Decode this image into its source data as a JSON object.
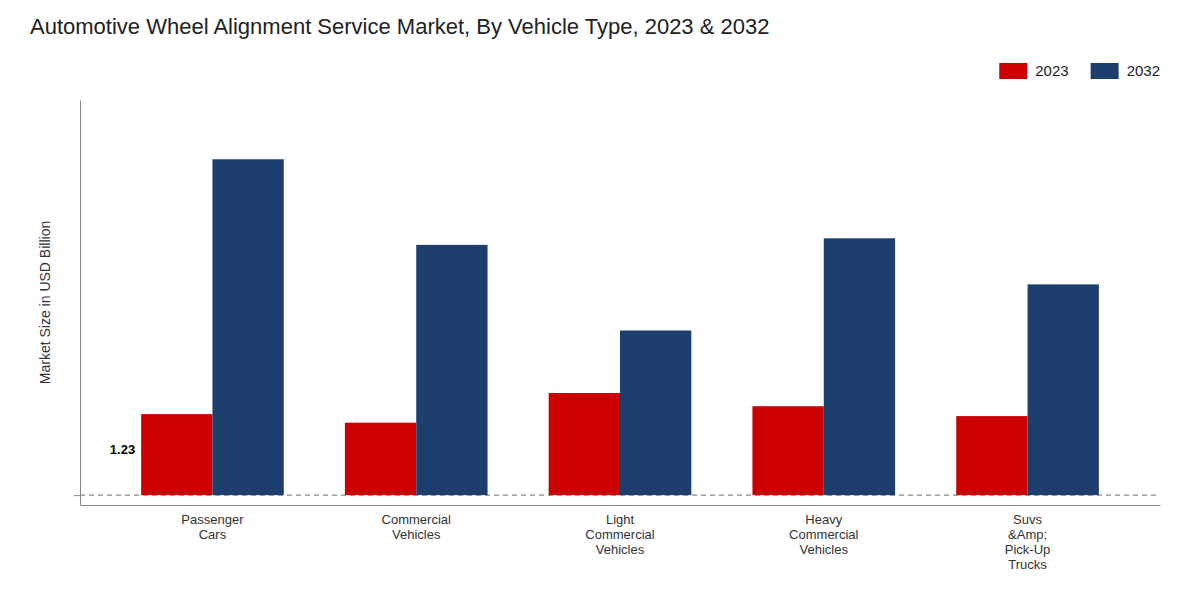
{
  "chart_data": {
    "type": "bar",
    "title": "Automotive Wheel Alignment Service Market, By Vehicle Type, 2023 & 2032",
    "ylabel": "Market Size in USD Billion",
    "categories": [
      "Passenger\nCars",
      "Commercial\nVehicles",
      "Light\nCommercial\nVehicles",
      "Heavy\nCommercial\nVehicles",
      "Suvs\n&Amp;\nPick-Up\nTrucks"
    ],
    "series": [
      {
        "name": "2023",
        "color": "#cc0000",
        "values": [
          1.23,
          1.1,
          1.55,
          1.35,
          1.2
        ]
      },
      {
        "name": "2032",
        "color": "#1c3f6e",
        "values": [
          5.1,
          3.8,
          2.5,
          3.9,
          3.2
        ]
      }
    ],
    "annotations": [
      "1.23"
    ],
    "ylim": [
      -0.15,
      6.0
    ],
    "yticks": [
      0
    ],
    "grid": true,
    "tick_labels": "x",
    "legend": "upper right"
  }
}
